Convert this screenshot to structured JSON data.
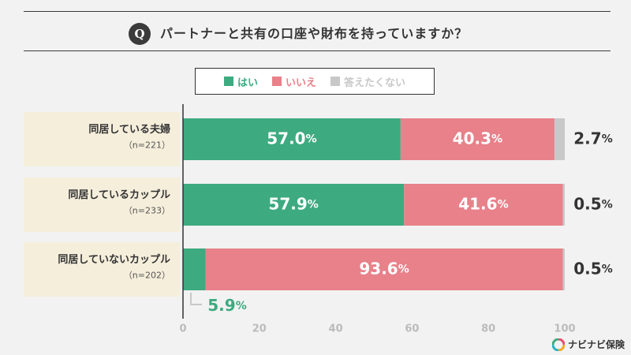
{
  "header": {
    "q_badge": "Q",
    "question": "パートナーと共有の口座や財布を持っていますか？"
  },
  "legend": [
    {
      "label": "はい",
      "color": "#3daa80"
    },
    {
      "label": "いいえ",
      "color": "#e8818a"
    },
    {
      "label": "答えたくない",
      "color": "#c8c8c8"
    }
  ],
  "brand": {
    "name": "ナビナビ保険"
  },
  "chart_data": {
    "type": "bar",
    "orientation": "horizontal",
    "stacked": true,
    "categories": [
      {
        "label": "同居している夫婦",
        "n": "（n=221）"
      },
      {
        "label": "同居しているカップル",
        "n": "（n=233）"
      },
      {
        "label": "同居していないカップル",
        "n": "（n=202）"
      }
    ],
    "series": [
      {
        "name": "はい",
        "values": [
          57.0,
          57.9,
          5.9
        ],
        "color": "#3daa80"
      },
      {
        "name": "いいえ",
        "values": [
          40.3,
          41.6,
          93.6
        ],
        "color": "#e8818a"
      },
      {
        "name": "答えたくない",
        "values": [
          2.7,
          0.5,
          0.5
        ],
        "color": "#c8c8c8"
      }
    ],
    "value_suffix": "%",
    "xlim": [
      0,
      100
    ],
    "xticks": [
      0,
      20,
      40,
      60,
      80,
      100
    ],
    "legend_position": "top",
    "grid": false
  }
}
